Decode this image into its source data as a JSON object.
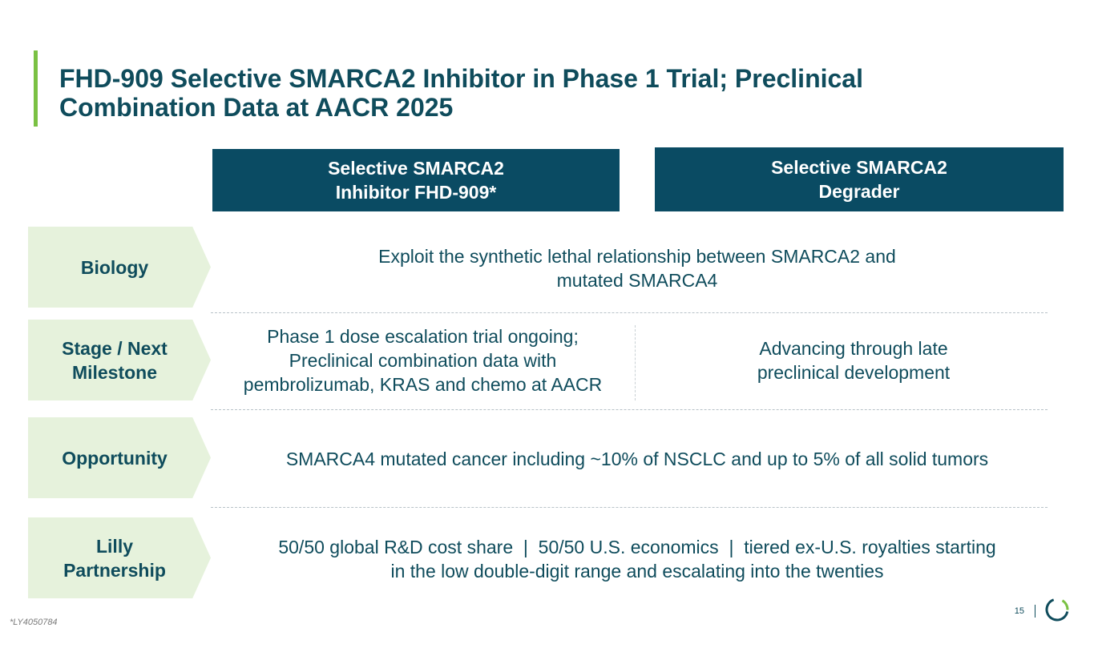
{
  "title": {
    "line1": "FHD-909 Selective SMARCA2 Inhibitor in Phase 1 Trial; Preclinical",
    "line2": "Combination Data at AACR 2025"
  },
  "column_headers": [
    {
      "line1": "Selective SMARCA2",
      "line2": "Inhibitor FHD-909*"
    },
    {
      "line1": "Selective SMARCA2",
      "line2": "Degrader"
    }
  ],
  "rows": {
    "biology": {
      "label": [
        "Biology"
      ],
      "text": [
        "Exploit the synthetic lethal relationship between SMARCA2 and",
        "mutated SMARCA4"
      ]
    },
    "stage": {
      "label": [
        "Stage / Next",
        "Milestone"
      ],
      "left": [
        "Phase 1 dose escalation trial ongoing;",
        "Preclinical combination data with",
        "pembrolizumab, KRAS and chemo at AACR"
      ],
      "right": [
        "Advancing through late",
        "preclinical development"
      ]
    },
    "opportunity": {
      "label": [
        "Opportunity"
      ],
      "text": [
        "SMARCA4 mutated cancer including ~10% of NSCLC and up to 5% of all solid tumors"
      ]
    },
    "lilly": {
      "label": [
        "Lilly",
        "Partnership"
      ],
      "text": [
        "50/50 global R&D cost share  |  50/50 U.S. economics  |  tiered ex-U.S. royalties starting",
        "in the low double-digit range and escalating into the twenties"
      ]
    }
  },
  "footnote": "*LY4050784",
  "page_number": "15",
  "colors": {
    "primary": "#0f4c5c",
    "header_fill": "#0a4b63",
    "label_fill": "#e6f2dc",
    "accent_green": "#7ac143"
  },
  "icons": {
    "logo": "circular-progress-logo-icon"
  }
}
